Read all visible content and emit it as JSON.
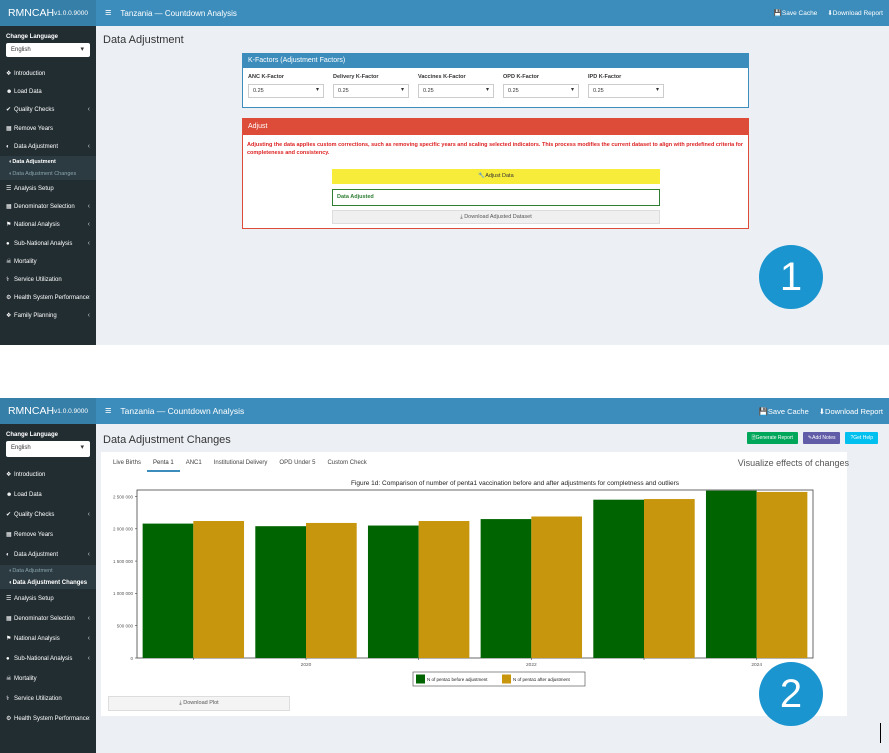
{
  "app": {
    "logo": "RMNCAH",
    "version": "v1.0.0.9000",
    "menu_icon": "≡",
    "window_title": "Tanzania — Countdown Analysis",
    "save_cache": "Save Cache",
    "download_report": "Download Report"
  },
  "sidebar": {
    "change_language": "Change Language",
    "language": "English",
    "items": [
      {
        "icon": "info-icon",
        "label": "Introduction"
      },
      {
        "icon": "user-icon",
        "label": "Load Data"
      },
      {
        "icon": "check-circle-icon",
        "label": "Quality Checks"
      },
      {
        "icon": "trash-icon",
        "label": "Remove Years"
      },
      {
        "icon": "circle-half-icon",
        "label": "Data Adjustment"
      },
      {
        "icon": "list-icon",
        "label": "Analysis Setup"
      },
      {
        "icon": "table-icon",
        "label": "Denominator Selection"
      },
      {
        "icon": "flag-icon",
        "label": "National Analysis"
      },
      {
        "icon": "globe-icon",
        "label": "Sub-National Analysis"
      },
      {
        "icon": "skull-icon",
        "label": "Mortality"
      },
      {
        "icon": "stethoscope-icon",
        "label": "Service Utilization"
      },
      {
        "icon": "gear-icon",
        "label": "Health System Performance"
      },
      {
        "icon": "family-icon",
        "label": "Family Planning"
      }
    ],
    "sub_items": [
      "Data Adjustment",
      "Data Adjustment Changes"
    ]
  },
  "screen1": {
    "page_title": "Data Adjustment",
    "kfactors": {
      "title": "K-Factors (Adjustment Factors)",
      "fields": [
        {
          "label": "ANC K-Factor",
          "value": "0.25"
        },
        {
          "label": "Delivery K-Factor",
          "value": "0.25"
        },
        {
          "label": "Vaccines K-Factor",
          "value": "0.25"
        },
        {
          "label": "OPD K-Factor",
          "value": "0.25"
        },
        {
          "label": "IPD K-Factor",
          "value": "0.25"
        }
      ]
    },
    "adjust": {
      "title": "Adjust",
      "description": "Adjusting the data applies custom corrections, such as removing specific years and scaling selected indicators. This process modifies the current dataset to align with predefined criteria for completeness and consistency.",
      "adjust_button": "Adjust Data",
      "status": "Data Adjusted",
      "download_button": "Download Adjusted Dataset"
    },
    "badge": "1"
  },
  "screen2": {
    "page_title": "Data Adjustment Changes",
    "buttons": {
      "generate_report": "Generate Report",
      "add_notes": "Add Notes",
      "get_help": "Get Help"
    },
    "tabs": [
      "Live Births",
      "Penta 1",
      "ANC1",
      "Institutional Delivery",
      "OPD Under 5",
      "Custom Check"
    ],
    "active_tab": "Penta 1",
    "viz_label": "Visualize effects of changes",
    "download_plot": "Download Plot",
    "badge": "2"
  },
  "chart_data": {
    "type": "bar",
    "title": "Figure 1d: Comparison of number of penta1 vaccination before and after adjustments for completness and outliers",
    "categories": [
      "2019",
      "2020",
      "2021",
      "2022",
      "2023",
      "2024"
    ],
    "x_tick_labels": [
      "",
      "2020",
      "",
      "2022",
      "",
      "2024"
    ],
    "series": [
      {
        "name": "N of penta1 before adjustment",
        "color": "#006400",
        "values": [
          2080000,
          2040000,
          2050000,
          2150000,
          2450000,
          2590000
        ]
      },
      {
        "name": "N of penta1 after adjustment",
        "color": "#c8960c",
        "values": [
          2120000,
          2090000,
          2120000,
          2190000,
          2460000,
          2570000
        ]
      }
    ],
    "y_ticks": [
      "0",
      "500 000",
      "1 000 000",
      "1 500 000",
      "2 000 000",
      "2 500 000"
    ],
    "ylim": [
      0,
      2600000
    ],
    "legend_position": "bottom"
  }
}
